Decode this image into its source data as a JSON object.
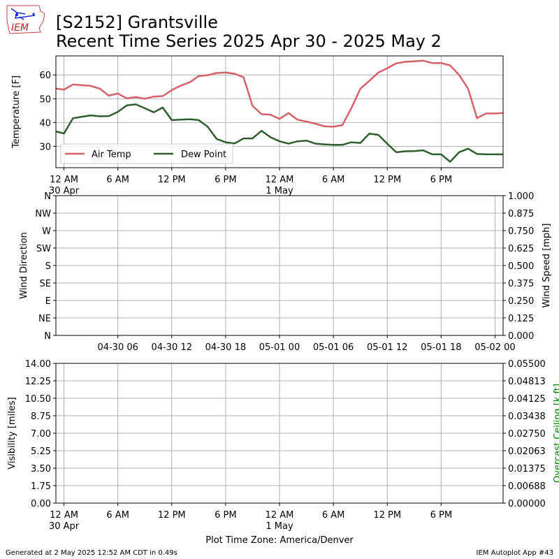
{
  "title": {
    "line1": "[S2152] Grantsville",
    "line2": "Recent Time Series 2025 Apr 30 - 2025 May 2"
  },
  "logo": {
    "text": "IEM"
  },
  "footer": {
    "generated": "Generated at 2 May 2025 12:52 AM CDT in 0.49s",
    "app": "IEM Autoplot App #43",
    "timezone_label": "Plot Time Zone: America/Denver"
  },
  "colors": {
    "air_temp": "#d6606a",
    "dew_point": "#2f5e2f",
    "grid": "#b0b0b0",
    "ceiling_label": "#008000"
  },
  "chart_data": [
    {
      "type": "line",
      "ylabel": "Temperature [F]",
      "ylim": [
        21,
        68
      ],
      "yticks": [
        30,
        40,
        50,
        60
      ],
      "xlim": [
        -0.9,
        48.9
      ],
      "xticks": [
        {
          "x": 0,
          "line1": "12 AM",
          "line2": "30 Apr"
        },
        {
          "x": 6,
          "line1": "6 AM",
          "line2": ""
        },
        {
          "x": 12,
          "line1": "12 PM",
          "line2": ""
        },
        {
          "x": 18,
          "line1": "6 PM",
          "line2": ""
        },
        {
          "x": 24,
          "line1": "12 AM",
          "line2": "1 May"
        },
        {
          "x": 30,
          "line1": "6 AM",
          "line2": ""
        },
        {
          "x": 36,
          "line1": "12 PM",
          "line2": ""
        },
        {
          "x": 42,
          "line1": "6 PM",
          "line2": ""
        }
      ],
      "grid": true,
      "legend": "lower-left",
      "series": [
        {
          "name": "Air Temp",
          "x": [
            -1,
            0,
            1,
            2,
            3,
            4,
            5,
            6,
            7,
            8,
            9,
            10,
            11,
            12,
            13,
            14,
            15,
            16,
            17,
            18,
            19,
            20,
            21,
            22,
            23,
            24,
            25,
            26,
            27,
            28,
            29,
            30,
            31,
            32,
            33,
            34,
            35,
            36,
            37,
            38,
            39,
            40,
            41,
            42,
            43,
            44,
            45,
            46,
            47,
            48,
            49
          ],
          "values": [
            54.3,
            53.8,
            56.0,
            55.7,
            55.4,
            54.2,
            51.3,
            52.2,
            50.1,
            50.7,
            50.0,
            50.9,
            51.1,
            53.6,
            55.5,
            56.9,
            59.5,
            59.9,
            60.8,
            61.0,
            60.5,
            59.0,
            47.0,
            43.5,
            43.3,
            41.5,
            44.0,
            41.2,
            40.4,
            39.5,
            38.4,
            38.2,
            38.9,
            46.0,
            54.2,
            57.5,
            61.0,
            62.8,
            64.9,
            65.5,
            65.7,
            66.0,
            65.0,
            65.0,
            64.0,
            60.0,
            54.2,
            41.8,
            43.8,
            43.8,
            44.0
          ]
        },
        {
          "name": "Dew Point",
          "x": [
            -1,
            0,
            1,
            2,
            3,
            4,
            5,
            6,
            7,
            8,
            9,
            10,
            11,
            12,
            13,
            14,
            15,
            16,
            17,
            18,
            19,
            20,
            21,
            22,
            23,
            24,
            25,
            26,
            27,
            28,
            29,
            30,
            31,
            32,
            33,
            34,
            35,
            36,
            37,
            38,
            39,
            40,
            41,
            42,
            43,
            44,
            45,
            46,
            47,
            48,
            49
          ],
          "values": [
            36.3,
            35.4,
            41.8,
            42.4,
            43.0,
            42.6,
            42.7,
            44.5,
            47.2,
            47.6,
            46.0,
            44.3,
            46.3,
            41.0,
            41.2,
            41.4,
            41.0,
            38.2,
            33.1,
            31.7,
            31.2,
            33.3,
            33.3,
            36.5,
            33.8,
            32.1,
            31.1,
            32.1,
            32.4,
            31.1,
            30.8,
            30.6,
            30.6,
            31.7,
            31.4,
            35.3,
            34.8,
            31.1,
            27.5,
            27.9,
            28.0,
            28.3,
            26.6,
            26.6,
            23.5,
            27.5,
            29.0,
            26.8,
            26.6,
            26.6,
            26.6
          ]
        }
      ]
    },
    {
      "type": "line",
      "ylabel": "Wind Direction",
      "y2label": "Wind Speed [mph]",
      "yticks": [
        "N",
        "NE",
        "E",
        "SE",
        "S",
        "SW",
        "W",
        "NW",
        "N"
      ],
      "y2ticks": [
        "0.000",
        "0.125",
        "0.250",
        "0.375",
        "0.500",
        "0.625",
        "0.750",
        "0.875",
        "1.000"
      ],
      "xticks": [
        "04-30 06",
        "04-30 12",
        "04-30 18",
        "05-01 00",
        "05-01 06",
        "05-01 12",
        "05-01 18",
        "05-02 00"
      ],
      "grid": true,
      "series": []
    },
    {
      "type": "line",
      "ylabel": "Visibility [miles]",
      "y2label": "Overcast Ceiling [k ft]",
      "yticks": [
        "0.00",
        "1.75",
        "3.50",
        "5.25",
        "7.00",
        "8.75",
        "10.50",
        "12.25",
        "14.00"
      ],
      "y2ticks": [
        "0.00000",
        "0.00688",
        "0.01375",
        "0.02063",
        "0.02750",
        "0.03438",
        "0.04125",
        "0.04813",
        "0.05500"
      ],
      "xticks": [
        {
          "line1": "12 AM",
          "line2": "30 Apr"
        },
        {
          "line1": "6 AM",
          "line2": ""
        },
        {
          "line1": "12 PM",
          "line2": ""
        },
        {
          "line1": "6 PM",
          "line2": ""
        },
        {
          "line1": "12 AM",
          "line2": "1 May"
        },
        {
          "line1": "6 AM",
          "line2": ""
        },
        {
          "line1": "12 PM",
          "line2": ""
        },
        {
          "line1": "6 PM",
          "line2": ""
        }
      ],
      "grid": true,
      "series": []
    }
  ]
}
